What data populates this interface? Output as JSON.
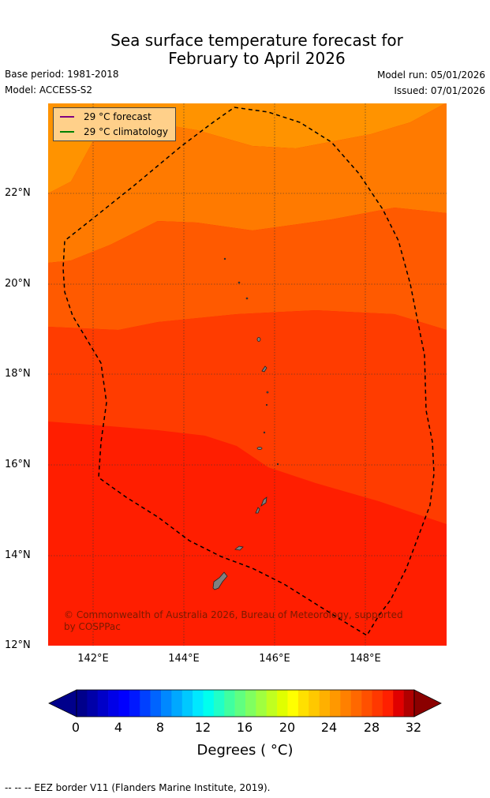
{
  "header": {
    "title_line1": "Sea surface temperature forecast for",
    "title_line2": "February to April 2026",
    "base_period": "Base period: 1981-2018",
    "model": "Model: ACCESS-S2",
    "model_run": "Model run: 05/01/2026",
    "issued": "Issued: 07/01/2026"
  },
  "legend": {
    "forecast": "29 °C  forecast",
    "forecast_color": "#800080",
    "climatology": "29 °C  climatology",
    "climatology_color": "#008000"
  },
  "map": {
    "lat_ticks": [
      "22°N",
      "20°N",
      "18°N",
      "16°N",
      "14°N",
      "12°N"
    ],
    "lon_ticks": [
      "142°E",
      "144°E",
      "146°E",
      "148°E"
    ],
    "copyright": "© Commonwealth of Australia 2026, Bureau of Meteorology, supported by COSPPac",
    "band_colors": [
      "#ff9300",
      "#ff7a00",
      "#ff5a00",
      "#ff3c00",
      "#ff1e00"
    ]
  },
  "colorbar": {
    "ticks": [
      "0",
      "4",
      "8",
      "12",
      "16",
      "20",
      "24",
      "28",
      "32"
    ],
    "label": "Degrees ( °C)",
    "colors": [
      "#00008b",
      "#0000a8",
      "#0000c8",
      "#0000e8",
      "#0000ff",
      "#0018ff",
      "#0040ff",
      "#0064ff",
      "#0088ff",
      "#00a8ff",
      "#00c8ff",
      "#00e8ff",
      "#00ffee",
      "#20ffc8",
      "#40ffa0",
      "#60ff80",
      "#80ff60",
      "#a0ff40",
      "#c0ff20",
      "#e0ff00",
      "#ffff00",
      "#ffe000",
      "#ffc800",
      "#ffb000",
      "#ff9800",
      "#ff8000",
      "#ff6800",
      "#ff5000",
      "#ff3800",
      "#ff2000",
      "#e00000",
      "#b00000"
    ],
    "under_color": "#00008b",
    "over_color": "#8b0000"
  },
  "footer": {
    "eez_note": "--  --  -- EEZ border V11 (Flanders Marine Institute, 2019)."
  }
}
